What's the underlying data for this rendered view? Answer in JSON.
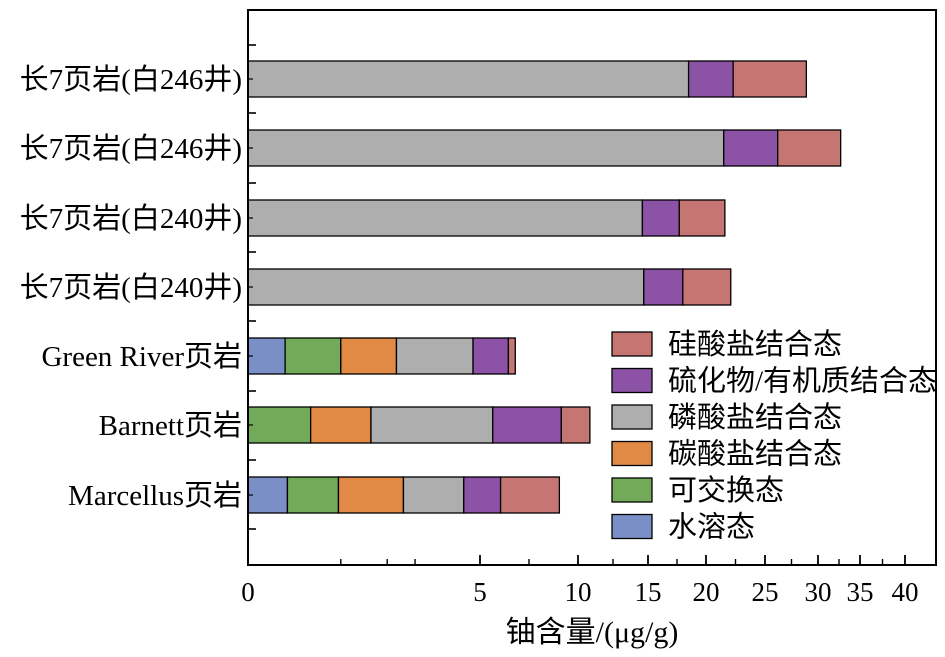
{
  "chart_data": {
    "type": "bar",
    "orientation": "horizontal",
    "stacked": true,
    "xlabel": "铀含量/(μg/g)",
    "xticks": [
      0,
      5,
      10,
      15,
      20,
      25,
      30,
      35,
      40
    ],
    "xlim": [
      0,
      40.5
    ],
    "categories": [
      "长7页岩(白246井)",
      "长7页岩(白246井)",
      "长7页岩(白240井)",
      "长7页岩(白240井)",
      "Green River页岩",
      "Barnett页岩",
      "Marcellus页岩"
    ],
    "series": [
      {
        "name": "水溶态",
        "color": "#7b8fc7",
        "values": [
          0,
          0,
          0,
          0,
          0.8,
          0,
          0.85
        ]
      },
      {
        "name": "可交换态",
        "color": "#72aa5a",
        "values": [
          0,
          0,
          0,
          0,
          1.2,
          1.35,
          1.1
        ]
      },
      {
        "name": "碳酸盐结合态",
        "color": "#e08a45",
        "values": [
          0,
          0,
          0,
          0,
          1.2,
          1.3,
          1.4
        ]
      },
      {
        "name": "磷酸盐结合态",
        "color": "#aeaeae",
        "values": [
          18.5,
          21.5,
          14.6,
          14.7,
          1.65,
          3.0,
          1.3
        ]
      },
      {
        "name": "硫化物/有机质结合态",
        "color": "#8b52a6",
        "values": [
          3.8,
          4.7,
          3.1,
          3.3,
          1.6,
          3.5,
          1.4
        ]
      },
      {
        "name": "硅酸盐结合态",
        "color": "#c67672",
        "values": [
          6.6,
          6.5,
          3.9,
          4.1,
          0.35,
          1.7,
          3.0
        ]
      }
    ],
    "legend": {
      "placement": "bottom-right",
      "order": [
        "硅酸盐结合态",
        "硫化物/有机质结合态",
        "磷酸盐结合态",
        "碳酸盐结合态",
        "可交换态",
        "水溶态"
      ]
    }
  }
}
